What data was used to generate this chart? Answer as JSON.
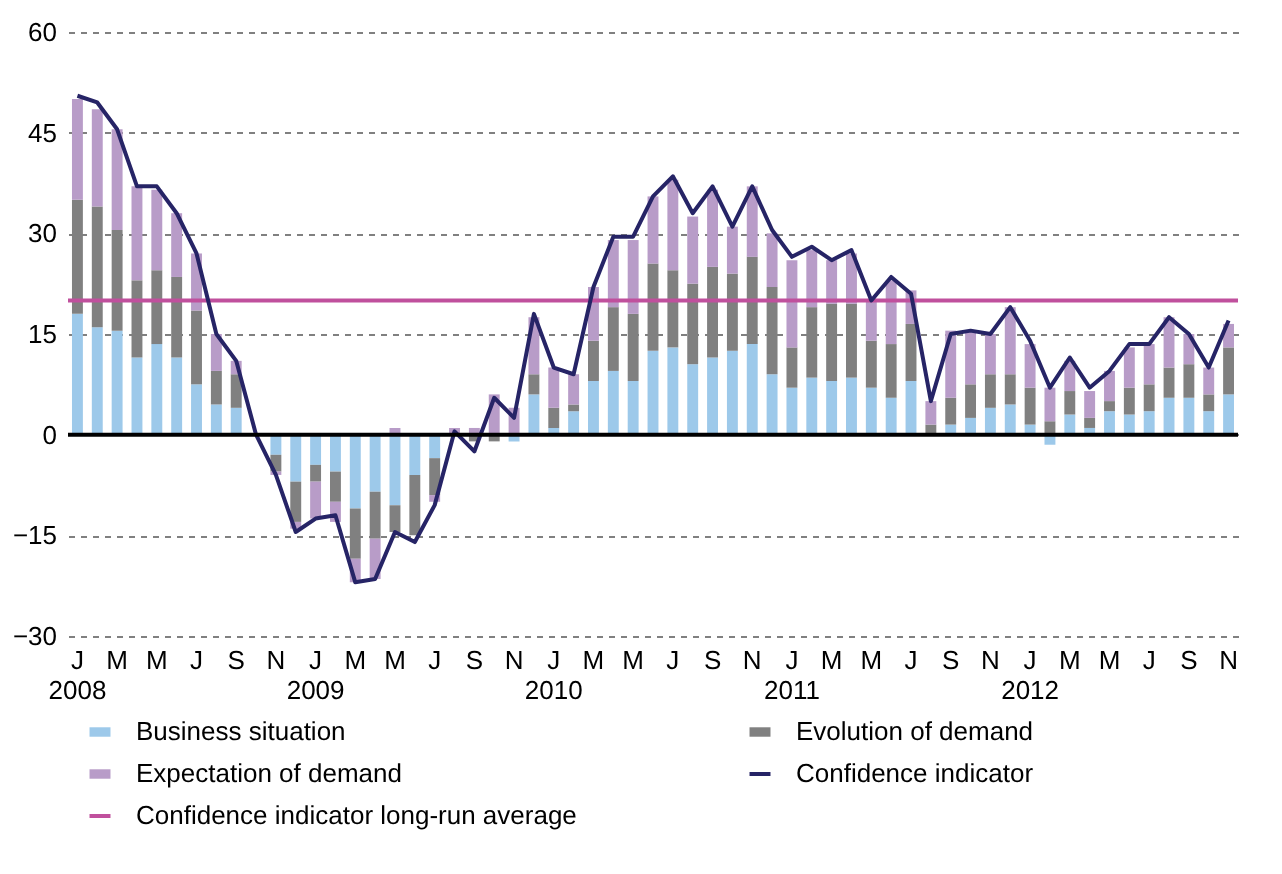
{
  "chart_data": {
    "type": "bar",
    "stacked": true,
    "categories": [
      "J\n2008",
      null,
      "M",
      null,
      "M",
      null,
      "J",
      null,
      "S",
      null,
      "N",
      null,
      "J\n2009",
      null,
      "M",
      null,
      "M",
      null,
      "J",
      null,
      "S",
      null,
      "N",
      null,
      "J\n2010",
      null,
      "M",
      null,
      "M",
      null,
      "J",
      null,
      "S",
      null,
      "N",
      null,
      "J\n2011",
      null,
      "M",
      null,
      "M",
      null,
      "J",
      null,
      "S",
      null,
      "N",
      null,
      "J\n2012",
      null,
      "M",
      null,
      "M",
      null,
      "J",
      null,
      "S",
      null,
      "N"
    ],
    "series": [
      {
        "name": "Business situation",
        "type": "bar",
        "color": "#9dc9ea",
        "values": [
          18,
          16,
          15.5,
          11.5,
          13.5,
          11.5,
          7.5,
          4.5,
          4,
          null,
          -3,
          -7,
          -4.5,
          -5.5,
          -11,
          -8.5,
          -10.5,
          -6,
          -3.5,
          0,
          null,
          0,
          -1,
          6,
          1,
          3.5,
          8,
          9.5,
          8,
          12.5,
          13,
          10.5,
          11.5,
          12.5,
          13.5,
          9,
          7,
          8.5,
          8,
          8.5,
          7,
          5.5,
          8,
          0,
          1.5,
          2.5,
          4,
          4.5,
          1.5,
          -1.5,
          3,
          1,
          3.5,
          3,
          3.5,
          5.5,
          5.5,
          3.5,
          6
        ]
      },
      {
        "name": "Evolution of demand",
        "type": "bar",
        "color": "#808080",
        "values": [
          17,
          18,
          15,
          11.5,
          11,
          12,
          11,
          5,
          5,
          0,
          -2.5,
          -6,
          -2.5,
          -4.5,
          -7.5,
          -7,
          -4,
          -9,
          -5.5,
          0,
          -1,
          -1,
          0,
          3,
          3,
          1,
          6,
          9.5,
          10,
          13,
          11.5,
          12,
          13.5,
          11.5,
          13,
          13,
          6,
          10.5,
          11.5,
          11,
          7,
          8,
          8.5,
          1.5,
          4,
          5,
          5,
          4.5,
          5.5,
          2,
          3.5,
          1.5,
          1.5,
          4,
          4,
          4.5,
          5,
          2.5,
          7
        ]
      },
      {
        "name": "Expectation of demand",
        "type": "bar",
        "color": "#b89cc8",
        "values": [
          15,
          14.5,
          15,
          14,
          12,
          9.5,
          8.5,
          5.5,
          2,
          null,
          -0.5,
          -1,
          -5.5,
          -3,
          -3.5,
          -6,
          1,
          null,
          -1,
          1,
          1,
          6,
          4,
          8.5,
          6,
          4.5,
          8,
          10,
          11,
          10,
          13.5,
          10,
          11.5,
          7,
          10.5,
          8,
          13,
          8.5,
          6.5,
          7.5,
          6,
          9.5,
          5,
          3.5,
          10,
          8,
          6,
          10,
          6.5,
          5,
          4.5,
          4,
          4.5,
          6,
          6,
          7.5,
          4.5,
          4,
          3.5
        ]
      },
      {
        "name": "Confidence indicator",
        "type": "line",
        "color": "#262466",
        "values": [
          50.5,
          49.5,
          45.5,
          37,
          37,
          33,
          27,
          15,
          11,
          0,
          -6,
          -14.5,
          -12.5,
          -12,
          -22,
          -21.5,
          -14.5,
          -16,
          -10.5,
          0.5,
          -2.5,
          5.5,
          2.5,
          18,
          10,
          9,
          22,
          29.5,
          29.5,
          35.5,
          38.5,
          33,
          37,
          31,
          37,
          30.5,
          26.5,
          28,
          26,
          27.5,
          20,
          23.5,
          21,
          5,
          15,
          15.5,
          15,
          19,
          14,
          7,
          11.5,
          7,
          9.5,
          13.5,
          13.5,
          17.5,
          15,
          10,
          17
        ]
      }
    ],
    "ylim": [
      -30,
      60
    ],
    "yticks": [
      -30,
      -15,
      0,
      15,
      30,
      45,
      60
    ],
    "grid": "y",
    "ref_lines": [
      {
        "axis": "y",
        "value": 0,
        "color": "#000000"
      },
      {
        "axis": "y",
        "value": 20,
        "label": "Confidence indicator long-run average",
        "color": "#c0509d"
      }
    ],
    "legend": "bottom",
    "marker": "none",
    "line_style": "solid"
  }
}
